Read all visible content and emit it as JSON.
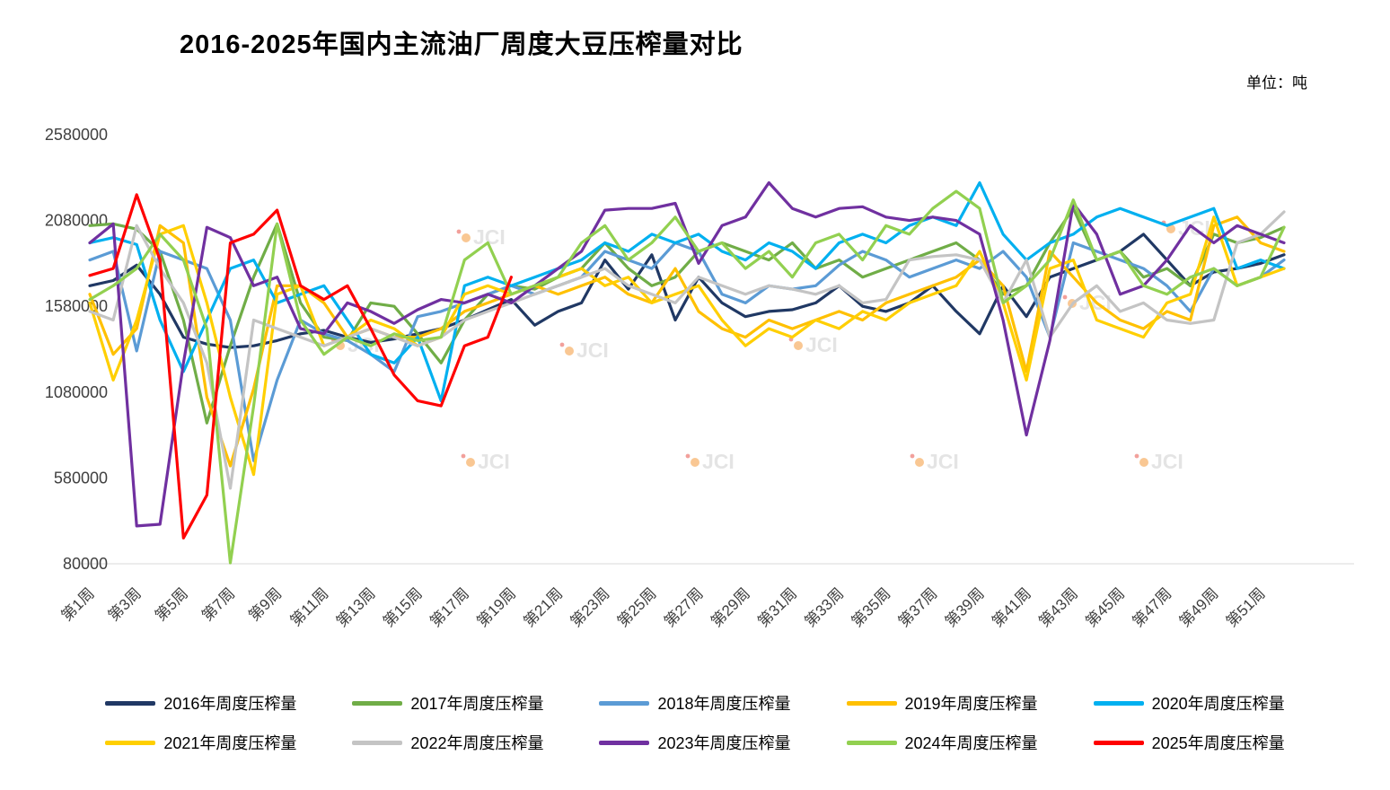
{
  "title": "2016-2025年国内主流油厂周度大豆压榨量对比",
  "unit_label": "单位：吨",
  "watermark_text": "JCI",
  "chart_data": {
    "type": "line",
    "title": "2016-2025年国内主流油厂周度大豆压榨量对比",
    "unit": "吨",
    "xlabel": "",
    "ylabel": "",
    "ylim": [
      80000,
      2580000
    ],
    "y_ticks": [
      2580000,
      2080000,
      1580000,
      1080000,
      580000,
      80000
    ],
    "weeks": 52,
    "grid": false,
    "legend_position": "bottom",
    "x_tick_labels": [
      "第1周",
      "第3周",
      "第5周",
      "第7周",
      "第9周",
      "第11周",
      "第13周",
      "第15周",
      "第17周",
      "第19周",
      "第21周",
      "第23周",
      "第25周",
      "第27周",
      "第29周",
      "第31周",
      "第33周",
      "第35周",
      "第37周",
      "第39周",
      "第41周",
      "第43周",
      "第45周",
      "第47周",
      "第49周",
      "第51周"
    ],
    "series": [
      {
        "year": "2016",
        "name": "2016年周度压榨量",
        "color": "#203864",
        "values": [
          1700000,
          1730000,
          1820000,
          1650000,
          1400000,
          1360000,
          1340000,
          1350000,
          1380000,
          1420000,
          1440000,
          1400000,
          1370000,
          1390000,
          1420000,
          1450000,
          1500000,
          1560000,
          1620000,
          1470000,
          1550000,
          1600000,
          1850000,
          1680000,
          1880000,
          1500000,
          1750000,
          1600000,
          1520000,
          1550000,
          1560000,
          1600000,
          1700000,
          1580000,
          1550000,
          1600000,
          1700000,
          1550000,
          1420000,
          1700000,
          1520000,
          1750000,
          1800000,
          1850000,
          1900000,
          2000000,
          1850000,
          1700000,
          1780000,
          1800000,
          1830000,
          1880000
        ]
      },
      {
        "year": "2017",
        "name": "2017年周度压榨量",
        "color": "#70AD47",
        "values": [
          2050000,
          2060000,
          2030000,
          1900000,
          1500000,
          900000,
          1350000,
          1750000,
          2060000,
          1600000,
          1400000,
          1380000,
          1600000,
          1580000,
          1420000,
          1250000,
          1500000,
          1650000,
          1700000,
          1680000,
          1750000,
          1800000,
          1950000,
          1800000,
          1700000,
          1750000,
          1900000,
          1950000,
          1900000,
          1850000,
          1950000,
          1800000,
          1850000,
          1750000,
          1800000,
          1850000,
          1900000,
          1950000,
          1850000,
          1650000,
          1700000,
          1950000,
          2150000,
          1850000,
          1900000,
          1750000,
          1800000,
          1700000,
          2000000,
          1950000,
          1980000,
          2040000
        ]
      },
      {
        "year": "2018",
        "name": "2018年周度压榨量",
        "color": "#5B9BD5",
        "values": [
          1850000,
          1900000,
          1320000,
          1900000,
          1850000,
          1800000,
          1500000,
          680000,
          1150000,
          1500000,
          1420000,
          1380000,
          1300000,
          1200000,
          1520000,
          1550000,
          1600000,
          1650000,
          1700000,
          1650000,
          1700000,
          1750000,
          1900000,
          1850000,
          1800000,
          1950000,
          1900000,
          1650000,
          1600000,
          1700000,
          1680000,
          1700000,
          1820000,
          1900000,
          1850000,
          1750000,
          1800000,
          1850000,
          1800000,
          1900000,
          1750000,
          1400000,
          1950000,
          1900000,
          1850000,
          1800000,
          1700000,
          1550000,
          1800000,
          1700000,
          1750000,
          1850000
        ]
      },
      {
        "year": "2019",
        "name": "2019年周度压榨量",
        "color": "#FFC000",
        "values": [
          1650000,
          1300000,
          1450000,
          2050000,
          1950000,
          1050000,
          650000,
          1100000,
          1700000,
          1700000,
          1600000,
          1400000,
          1450000,
          1400000,
          1400000,
          1450000,
          1550000,
          1600000,
          1650000,
          1700000,
          1650000,
          1700000,
          1750000,
          1650000,
          1600000,
          1800000,
          1550000,
          1450000,
          1400000,
          1500000,
          1450000,
          1500000,
          1550000,
          1500000,
          1600000,
          1650000,
          1700000,
          1750000,
          1850000,
          1700000,
          1200000,
          1900000,
          1750000,
          1600000,
          1500000,
          1450000,
          1550000,
          1500000,
          2050000,
          2100000,
          1950000,
          1900000
        ]
      },
      {
        "year": "2020",
        "name": "2020年周度压榨量",
        "color": "#00B0F0",
        "values": [
          1950000,
          1980000,
          1940000,
          1500000,
          1200000,
          1500000,
          1800000,
          1850000,
          1600000,
          1650000,
          1700000,
          1500000,
          1300000,
          1250000,
          1400000,
          1030000,
          1700000,
          1750000,
          1700000,
          1750000,
          1800000,
          1850000,
          1950000,
          1900000,
          2000000,
          1950000,
          2000000,
          1900000,
          1850000,
          1950000,
          1900000,
          1800000,
          1950000,
          2000000,
          1950000,
          2050000,
          2100000,
          2050000,
          2300000,
          2000000,
          1850000,
          1950000,
          2000000,
          2100000,
          2150000,
          2100000,
          2050000,
          2100000,
          2150000,
          1800000,
          1850000,
          1800000
        ]
      },
      {
        "year": "2021",
        "name": "2021年周度压榨量",
        "color": "#FFCF00",
        "values": [
          1600000,
          1150000,
          1500000,
          2000000,
          2050000,
          1600000,
          1050000,
          600000,
          1650000,
          1700000,
          1350000,
          1400000,
          1500000,
          1450000,
          1350000,
          1400000,
          1650000,
          1700000,
          1650000,
          1700000,
          1750000,
          1800000,
          1700000,
          1750000,
          1600000,
          1650000,
          1700000,
          1500000,
          1350000,
          1450000,
          1400000,
          1500000,
          1450000,
          1550000,
          1500000,
          1600000,
          1650000,
          1700000,
          1900000,
          1600000,
          1150000,
          1800000,
          1850000,
          1500000,
          1450000,
          1400000,
          1600000,
          1650000,
          2100000,
          1700000,
          1750000,
          1800000
        ]
      },
      {
        "year": "2022",
        "name": "2022年周度压榨量",
        "color": "#C4C4C4",
        "values": [
          1550000,
          1500000,
          2050000,
          1800000,
          1600000,
          1250000,
          520000,
          1500000,
          1450000,
          1400000,
          1350000,
          1400000,
          1450000,
          1400000,
          1350000,
          1400000,
          1500000,
          1550000,
          1600000,
          1650000,
          1700000,
          1750000,
          1800000,
          1700000,
          1650000,
          1600000,
          1750000,
          1700000,
          1650000,
          1700000,
          1680000,
          1650000,
          1700000,
          1600000,
          1620000,
          1850000,
          1870000,
          1880000,
          1850000,
          1600000,
          1850000,
          1400000,
          1600000,
          1700000,
          1550000,
          1600000,
          1500000,
          1480000,
          1500000,
          1950000,
          2000000,
          2130000
        ]
      },
      {
        "year": "2023",
        "name": "2023年周度压榨量",
        "color": "#7030A0",
        "values": [
          1950000,
          2060000,
          300000,
          310000,
          1250000,
          2040000,
          1980000,
          1700000,
          1750000,
          1450000,
          1420000,
          1600000,
          1550000,
          1480000,
          1560000,
          1620000,
          1600000,
          1650000,
          1600000,
          1700000,
          1800000,
          1900000,
          2140000,
          2150000,
          2150000,
          2180000,
          1830000,
          2050000,
          2100000,
          2300000,
          2150000,
          2100000,
          2150000,
          2160000,
          2100000,
          2080000,
          2100000,
          2080000,
          2000000,
          1500000,
          830000,
          1380000,
          2180000,
          2000000,
          1650000,
          1700000,
          1850000,
          2050000,
          1950000,
          2050000,
          2000000,
          1950000
        ]
      },
      {
        "year": "2024",
        "name": "2024年周度压榨量",
        "color": "#92D050",
        "values": [
          1620000,
          1700000,
          1800000,
          2000000,
          1850000,
          1450000,
          85000,
          1000000,
          2060000,
          1500000,
          1300000,
          1400000,
          1350000,
          1420000,
          1380000,
          1400000,
          1850000,
          1950000,
          1650000,
          1700000,
          1750000,
          1950000,
          2050000,
          1850000,
          1950000,
          2100000,
          1900000,
          1950000,
          1800000,
          1900000,
          1750000,
          1950000,
          2000000,
          1850000,
          2050000,
          2000000,
          2150000,
          2250000,
          2150000,
          1600000,
          1700000,
          1850000,
          2200000,
          1850000,
          1900000,
          1700000,
          1650000,
          1750000,
          1800000,
          1700000,
          1750000,
          2040000
        ]
      },
      {
        "year": "2025",
        "name": "2025年周度压榨量",
        "color": "#FF0000",
        "values": [
          1760000,
          1800000,
          2230000,
          1850000,
          230000,
          480000,
          1950000,
          2000000,
          2140000,
          1700000,
          1620000,
          1700000,
          1450000,
          1180000,
          1030000,
          1000000,
          1350000,
          1400000,
          1750000,
          null,
          null,
          null,
          null,
          null,
          null,
          null,
          null,
          null,
          null,
          null,
          null,
          null,
          null,
          null,
          null,
          null,
          null,
          null,
          null,
          null,
          null,
          null,
          null,
          null,
          null,
          null,
          null,
          null,
          null,
          null,
          null,
          null
        ]
      }
    ]
  }
}
